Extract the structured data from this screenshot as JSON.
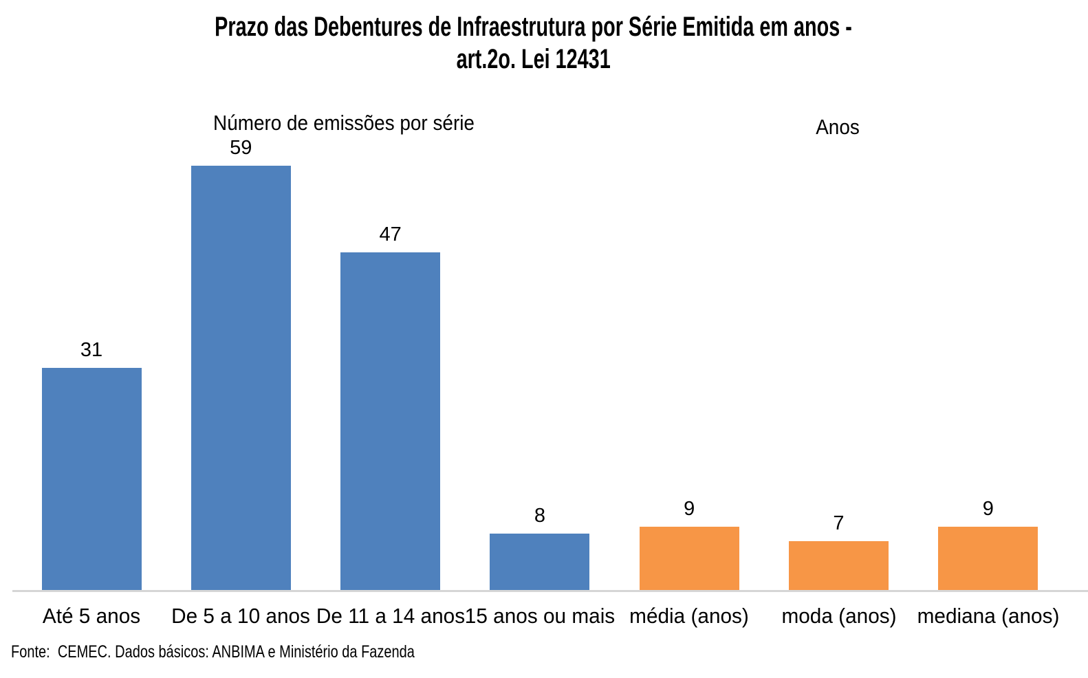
{
  "header": {
    "title_line1": "Prazo das Debentures de Infraestrutura por Série Emitida em anos -",
    "title_line2": "art.2o. Lei 12431"
  },
  "annotations": {
    "left_axis_label": "Número de emissões por série",
    "right_axis_label": "Anos"
  },
  "footer": {
    "source": "Fonte:  CEMEC. Dados básicos: ANBIMA e Ministério da Fazenda"
  },
  "colors": {
    "blue": "#4F81BD",
    "orange": "#F79646",
    "axis_line": "#D6D6D6",
    "text": "#000000"
  },
  "chart_data": {
    "type": "bar",
    "title": "Prazo das Debentures de Infraestrutura por Série Emitida em anos - art.2o. Lei 12431",
    "categories": [
      "Até 5 anos",
      "De 5 a 10 anos",
      "De 11 a 14 anos",
      "15 anos ou mais",
      "média (anos)",
      "moda (anos)",
      "mediana (anos)"
    ],
    "series": [
      {
        "name": "Número de emissões por série",
        "color_key": "blue",
        "values": [
          31,
          59,
          47,
          8,
          null,
          null,
          null
        ]
      },
      {
        "name": "Anos",
        "color_key": "orange",
        "values": [
          null,
          null,
          null,
          null,
          9,
          7,
          9
        ]
      }
    ],
    "data_labels": [
      31,
      59,
      47,
      8,
      9,
      7,
      9
    ],
    "ylim": [
      0,
      62
    ],
    "grid": false,
    "legend": "none",
    "source": "Fonte:  CEMEC. Dados básicos: ANBIMA e Ministério da Fazenda"
  }
}
